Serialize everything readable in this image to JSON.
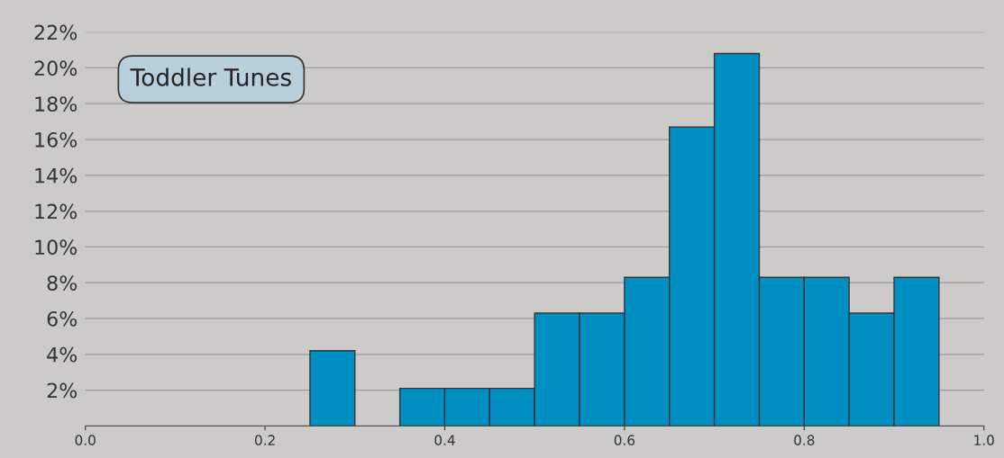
{
  "chart_data": {
    "type": "histogram",
    "title": "Toddler Tunes",
    "bins": [
      0.0,
      0.05,
      0.1,
      0.15,
      0.2,
      0.25,
      0.3,
      0.35,
      0.4,
      0.45,
      0.5,
      0.55,
      0.6,
      0.65,
      0.7,
      0.75,
      0.8,
      0.85,
      0.9,
      0.95
    ],
    "values": [
      0,
      0,
      0,
      0,
      0,
      4.2,
      0,
      2.1,
      2.1,
      2.1,
      6.3,
      6.3,
      8.3,
      16.7,
      20.8,
      8.3,
      8.3,
      6.3,
      8.3
    ],
    "color": "#008fc2",
    "xlim": [
      0.0,
      1.0
    ],
    "xticks": [
      {
        "value": 0.0,
        "label": "0.0"
      },
      {
        "value": 0.2,
        "label": "0.2"
      },
      {
        "value": 0.4,
        "label": "0.4"
      },
      {
        "value": 0.6,
        "label": "0.6"
      },
      {
        "value": 0.8,
        "label": "0.8"
      },
      {
        "value": 1.0,
        "label": "1.0"
      }
    ],
    "ylim": [
      0,
      22
    ],
    "yticks": [
      {
        "value": 2,
        "label": "2%"
      },
      {
        "value": 4,
        "label": "4%"
      },
      {
        "value": 6,
        "label": "6%"
      },
      {
        "value": 8,
        "label": "8%"
      },
      {
        "value": 10,
        "label": "10%"
      },
      {
        "value": 12,
        "label": "12%"
      },
      {
        "value": 14,
        "label": "14%"
      },
      {
        "value": 16,
        "label": "16%"
      },
      {
        "value": 18,
        "label": "18%"
      },
      {
        "value": 20,
        "label": "20%"
      },
      {
        "value": 22,
        "label": "22%"
      }
    ],
    "grid": "y"
  }
}
